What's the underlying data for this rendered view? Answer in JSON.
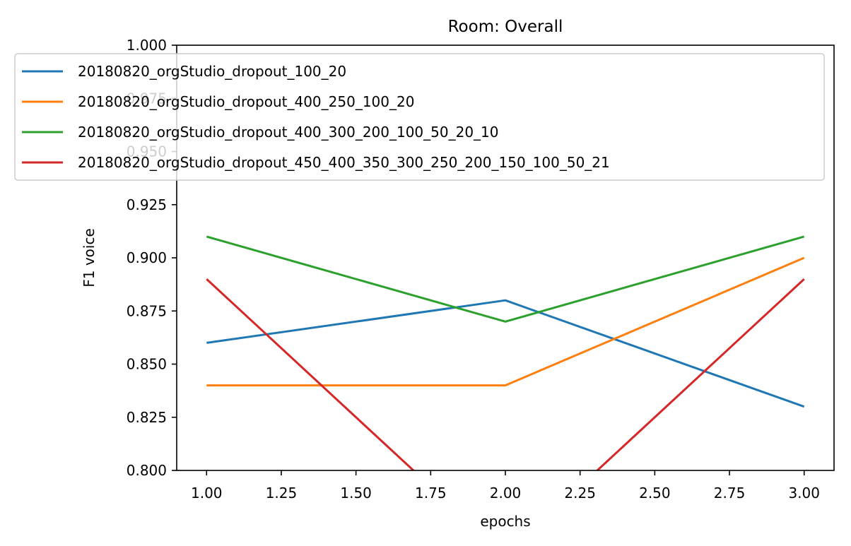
{
  "chart_data": {
    "type": "line",
    "title": "Room: Overall",
    "xlabel": "epochs",
    "ylabel": "F1 voice",
    "xlim": [
      0.9,
      3.1
    ],
    "ylim": [
      0.8,
      1.0
    ],
    "xticks": [
      "1.00",
      "1.25",
      "1.50",
      "1.75",
      "2.00",
      "2.25",
      "2.50",
      "2.75",
      "3.00"
    ],
    "yticks": [
      "0.800",
      "0.825",
      "0.850",
      "0.875",
      "0.900",
      "0.925",
      "0.950",
      "0.975",
      "1.000"
    ],
    "legend_position": "top",
    "grid": false,
    "x": [
      1,
      2,
      3
    ],
    "series": [
      {
        "name": "20180820_orgStudio_dropout_100_20",
        "color": "#1f77b4",
        "values": [
          0.86,
          0.88,
          0.83
        ]
      },
      {
        "name": "20180820_orgStudio_dropout_400_250_100_20",
        "color": "#ff7f0e",
        "values": [
          0.84,
          0.84,
          0.9
        ]
      },
      {
        "name": "20180820_orgStudio_dropout_400_300_200_100_50_20_10",
        "color": "#2ca02c",
        "values": [
          0.91,
          0.87,
          0.91
        ]
      },
      {
        "name": "20180820_orgStudio_dropout_450_400_350_300_250_200_150_100_50_21",
        "color": "#d62728",
        "values": [
          0.89,
          0.76,
          0.89
        ]
      }
    ]
  }
}
